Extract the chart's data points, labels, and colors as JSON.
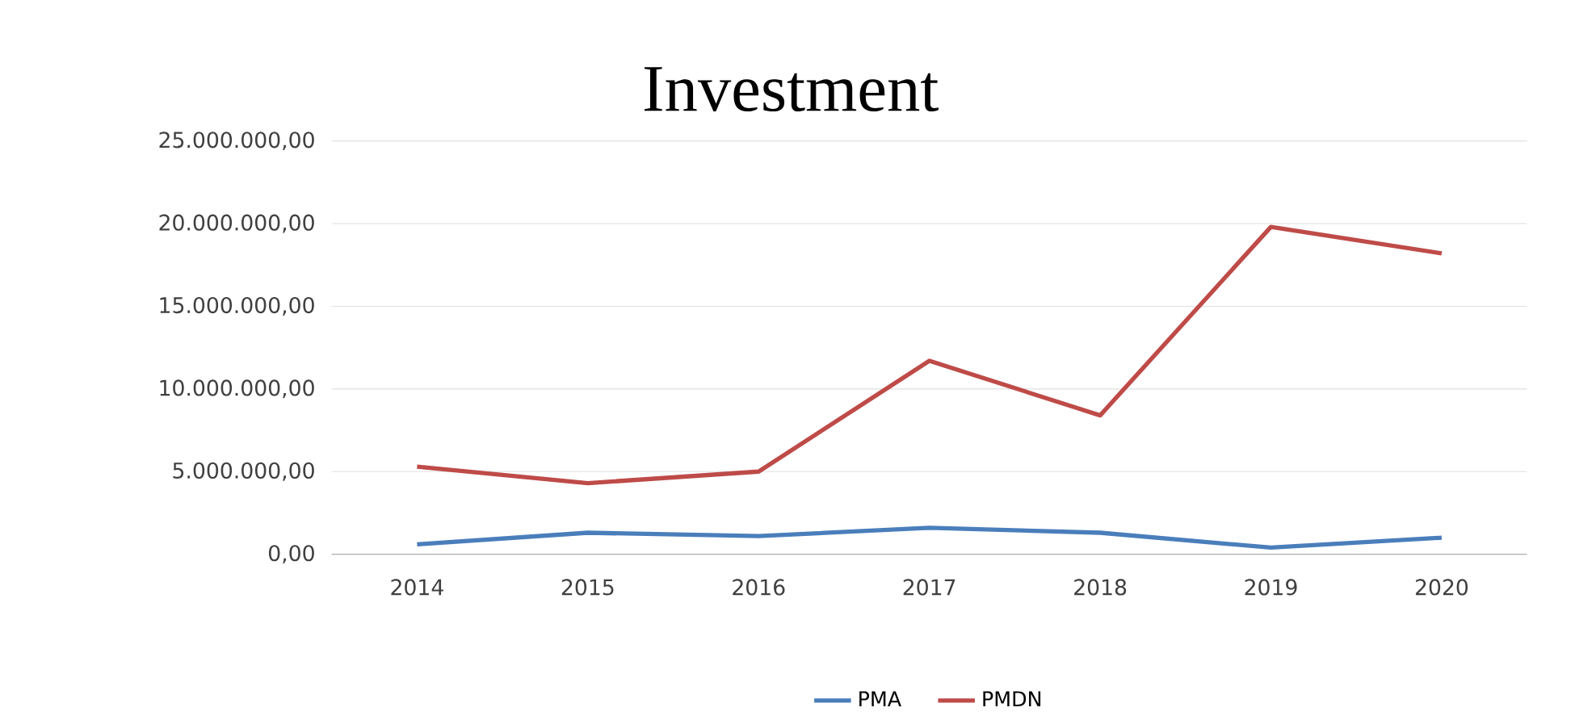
{
  "chart_data": {
    "type": "line",
    "title": "Investment",
    "categories": [
      "2014",
      "2015",
      "2016",
      "2017",
      "2018",
      "2019",
      "2020"
    ],
    "series": [
      {
        "name": "PMA",
        "color": "#4a7ebb",
        "values": [
          600000,
          1300000,
          1100000,
          1600000,
          1300000,
          400000,
          1000000
        ]
      },
      {
        "name": "PMDN",
        "color": "#be4b48",
        "values": [
          5300000,
          4300000,
          5000000,
          11700000,
          8400000,
          19800000,
          18200000
        ]
      }
    ],
    "ylim": [
      0,
      25000000
    ],
    "yticks": [
      {
        "value": 0,
        "label": "0,00"
      },
      {
        "value": 5000000,
        "label": "5.000.000,00"
      },
      {
        "value": 10000000,
        "label": "10.000.000,00"
      },
      {
        "value": 15000000,
        "label": "15.000.000,00"
      },
      {
        "value": 20000000,
        "label": "20.000.000,00"
      },
      {
        "value": 25000000,
        "label": "25.000.000,00"
      }
    ],
    "grid": "y",
    "legend": "bottom",
    "marker": "none",
    "line_style": "solid"
  }
}
